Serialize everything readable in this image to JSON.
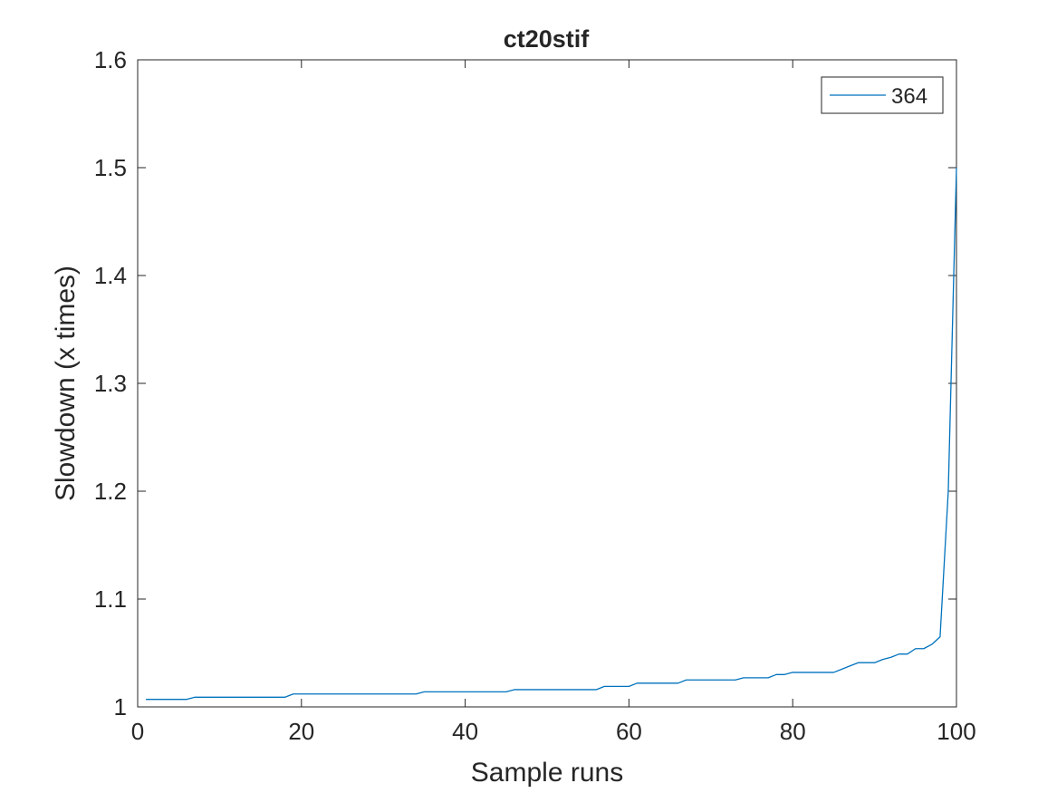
{
  "chart_data": {
    "type": "line",
    "title": "ct20stif",
    "xlabel": "Sample runs",
    "ylabel": "Slowdown (x times)",
    "xlim": [
      0,
      100
    ],
    "ylim": [
      1,
      1.6
    ],
    "xticks": [
      0,
      20,
      40,
      60,
      80,
      100
    ],
    "xtick_labels": [
      "0",
      "20",
      "40",
      "60",
      "80",
      "100"
    ],
    "yticks": [
      1,
      1.1,
      1.2,
      1.3,
      1.4,
      1.5,
      1.6
    ],
    "ytick_labels": [
      "1",
      "1.1",
      "1.2",
      "1.3",
      "1.4",
      "1.5",
      "1.6"
    ],
    "grid": false,
    "legend_position": "top-right",
    "colors": {
      "series": "#0072BD",
      "axis": "#262626"
    },
    "series": [
      {
        "name": "364",
        "x": [
          1,
          2,
          3,
          4,
          5,
          6,
          7,
          8,
          9,
          10,
          11,
          12,
          13,
          14,
          15,
          16,
          17,
          18,
          19,
          20,
          21,
          22,
          23,
          24,
          25,
          26,
          27,
          28,
          29,
          30,
          31,
          32,
          33,
          34,
          35,
          36,
          37,
          38,
          39,
          40,
          41,
          42,
          43,
          44,
          45,
          46,
          47,
          48,
          49,
          50,
          51,
          52,
          53,
          54,
          55,
          56,
          57,
          58,
          59,
          60,
          61,
          62,
          63,
          64,
          65,
          66,
          67,
          68,
          69,
          70,
          71,
          72,
          73,
          74,
          75,
          76,
          77,
          78,
          79,
          80,
          81,
          82,
          83,
          84,
          85,
          86,
          87,
          88,
          89,
          90,
          91,
          92,
          93,
          94,
          95,
          96,
          97,
          98,
          99,
          100
        ],
        "y": [
          1.007,
          1.007,
          1.007,
          1.007,
          1.007,
          1.007,
          1.009,
          1.009,
          1.009,
          1.009,
          1.009,
          1.009,
          1.009,
          1.009,
          1.009,
          1.009,
          1.009,
          1.009,
          1.012,
          1.012,
          1.012,
          1.012,
          1.012,
          1.012,
          1.012,
          1.012,
          1.012,
          1.012,
          1.012,
          1.012,
          1.012,
          1.012,
          1.012,
          1.012,
          1.014,
          1.014,
          1.014,
          1.014,
          1.014,
          1.014,
          1.014,
          1.014,
          1.014,
          1.014,
          1.014,
          1.016,
          1.016,
          1.016,
          1.016,
          1.016,
          1.016,
          1.016,
          1.016,
          1.016,
          1.016,
          1.016,
          1.019,
          1.019,
          1.019,
          1.019,
          1.022,
          1.022,
          1.022,
          1.022,
          1.022,
          1.022,
          1.025,
          1.025,
          1.025,
          1.025,
          1.025,
          1.025,
          1.025,
          1.027,
          1.027,
          1.027,
          1.027,
          1.03,
          1.03,
          1.032,
          1.032,
          1.032,
          1.032,
          1.032,
          1.032,
          1.035,
          1.038,
          1.041,
          1.041,
          1.041,
          1.044,
          1.046,
          1.049,
          1.049,
          1.054,
          1.054,
          1.058,
          1.065,
          1.2,
          1.5
        ]
      }
    ]
  }
}
